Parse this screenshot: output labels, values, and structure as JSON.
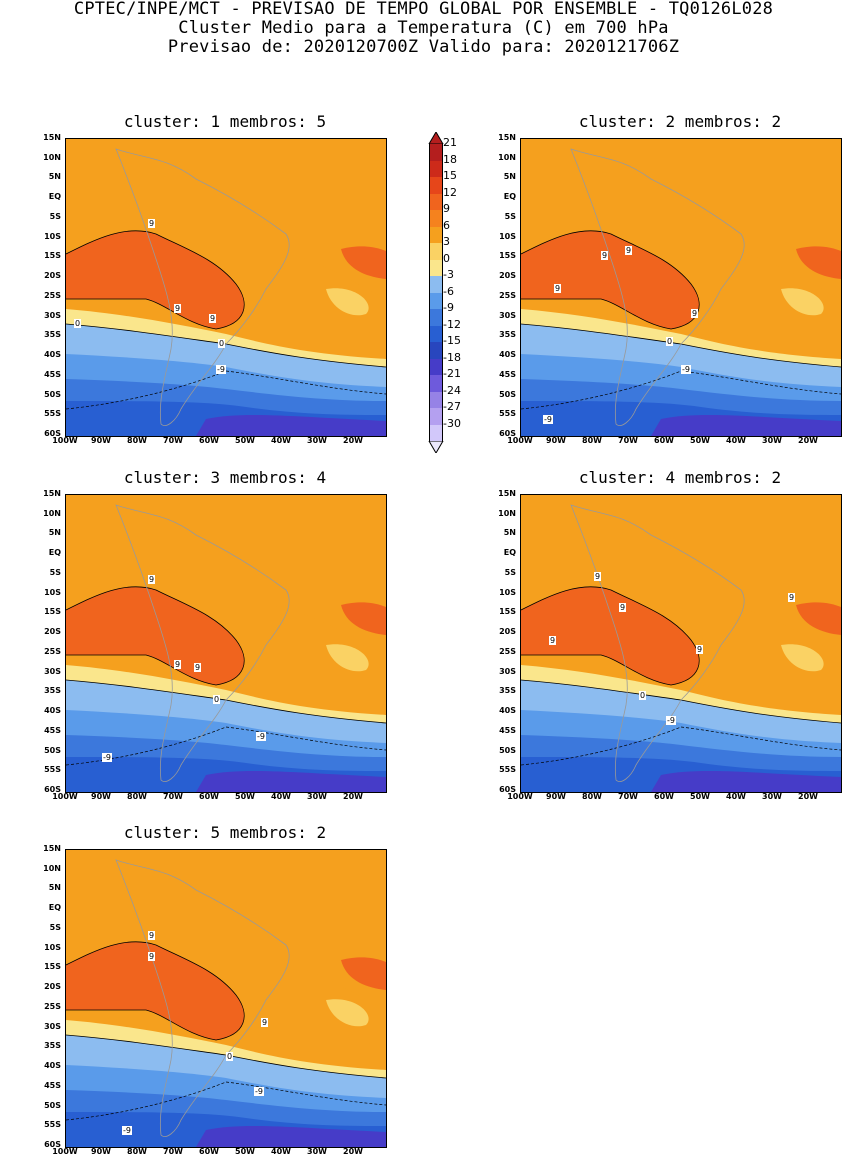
{
  "header": {
    "line1": "CPTEC/INPE/MCT - PREVISAO DE TEMPO GLOBAL POR ENSEMBLE - TQ0126L028",
    "line2": "Cluster Medio para a Temperatura (C) em 700 hPa",
    "line3": "Previsao de: 2020120700Z   Valido para: 2020121706Z"
  },
  "axes": {
    "lat_labels": [
      "15N",
      "10N",
      "5N",
      "EQ",
      "5S",
      "10S",
      "15S",
      "20S",
      "25S",
      "30S",
      "35S",
      "40S",
      "45S",
      "50S",
      "55S",
      "60S"
    ],
    "lon_labels": [
      "100W",
      "90W",
      "80W",
      "70W",
      "60W",
      "50W",
      "40W",
      "30W",
      "20W"
    ]
  },
  "colorbar": {
    "labels": [
      "21",
      "18",
      "15",
      "12",
      "9",
      "6",
      "3",
      "0",
      "-3",
      "-6",
      "-9",
      "-12",
      "-15",
      "-18",
      "-21",
      "-24",
      "-27",
      "-30"
    ],
    "colors": [
      "#b41e1e",
      "#cd2a1a",
      "#e6461a",
      "#f0641e",
      "#f5821e",
      "#f5a01e",
      "#fad264",
      "#fae68c",
      "#8cbcf0",
      "#5a9bea",
      "#3c78dc",
      "#285fd2",
      "#2846be",
      "#463cc8",
      "#6e5adc",
      "#9682e6",
      "#b4a0f0",
      "#d2c8fa"
    ]
  },
  "panels": [
    {
      "title": "cluster: 1   membros: 5",
      "contour_labels": [
        "9",
        "9",
        "9",
        "0",
        "0",
        "-9"
      ]
    },
    {
      "title": "cluster: 2   membros: 2",
      "contour_labels": [
        "9",
        "9",
        "9",
        "9",
        "0",
        "-9",
        "-9"
      ]
    },
    {
      "title": "cluster: 3   membros: 4",
      "contour_labels": [
        "9",
        "9",
        "9",
        "0",
        "-9",
        "-9"
      ]
    },
    {
      "title": "cluster: 4   membros: 2",
      "contour_labels": [
        "9",
        "9",
        "9",
        "9",
        "9",
        "0",
        "-9"
      ]
    },
    {
      "title": "cluster: 5   membros: 2",
      "contour_labels": [
        "9",
        "9",
        "9",
        "0",
        "-9",
        "-9"
      ]
    }
  ]
}
